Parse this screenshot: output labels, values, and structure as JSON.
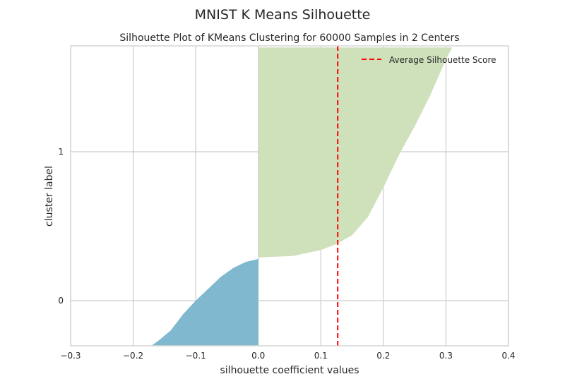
{
  "figure": {
    "suptitle": "MNIST K Means Silhouette"
  },
  "chart_data": {
    "type": "area",
    "title": "Silhouette Plot of KMeans Clustering for 60000 Samples in 2 Centers",
    "xlabel": "silhouette coefficient values",
    "ylabel": "cluster label",
    "xlim": [
      -0.3,
      0.4
    ],
    "xticks": [
      -0.3,
      -0.2,
      -0.1,
      0.0,
      0.1,
      0.2,
      0.3,
      0.4
    ],
    "xtick_labels": [
      "−0.3",
      "−0.2",
      "−0.1",
      "0.0",
      "0.1",
      "0.2",
      "0.3",
      "0.4"
    ],
    "yticks": [
      0,
      1
    ],
    "ytick_labels": [
      "0",
      "1"
    ],
    "grid": true,
    "legend_position": "top-right",
    "average_silhouette_score": 0.127,
    "average_line_color": "#ff0000",
    "legend": {
      "label": "Average Silhouette Score"
    },
    "clusters": [
      {
        "label": "0",
        "color": "#7fb8cf",
        "profile": [
          [
            0.0,
            -0.3
          ],
          [
            0.0,
            0.28
          ],
          [
            -0.02,
            0.26
          ],
          [
            -0.04,
            0.22
          ],
          [
            -0.06,
            0.16
          ],
          [
            -0.08,
            0.08
          ],
          [
            -0.1,
            0.0
          ],
          [
            -0.12,
            -0.09
          ],
          [
            -0.14,
            -0.2
          ],
          [
            -0.16,
            -0.27
          ],
          [
            -0.17,
            -0.3
          ]
        ]
      },
      {
        "label": "1",
        "color": "#cfe1ba",
        "profile": [
          [
            0.0,
            0.29
          ],
          [
            0.055,
            0.3
          ],
          [
            0.1,
            0.34
          ],
          [
            0.125,
            0.38
          ],
          [
            0.15,
            0.44
          ],
          [
            0.175,
            0.56
          ],
          [
            0.2,
            0.76
          ],
          [
            0.225,
            0.98
          ],
          [
            0.25,
            1.17
          ],
          [
            0.275,
            1.38
          ],
          [
            0.3,
            1.62
          ],
          [
            0.31,
            1.7
          ],
          [
            0.0,
            1.7
          ]
        ]
      }
    ]
  }
}
